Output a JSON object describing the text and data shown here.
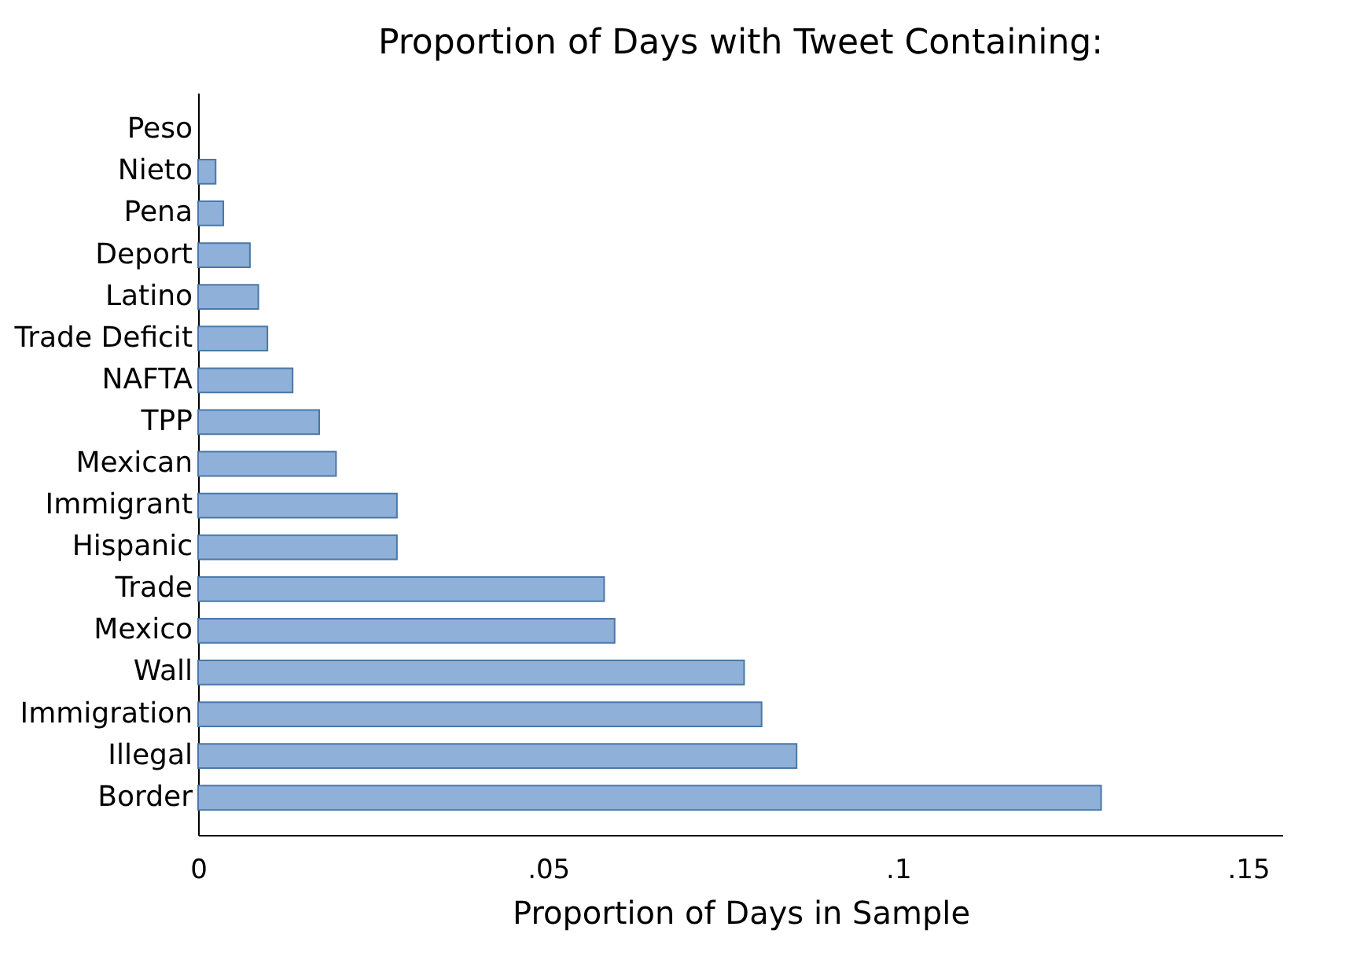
{
  "chart_data": {
    "type": "bar",
    "orientation": "horizontal",
    "title": "Proportion of Days with Tweet Containing:",
    "xlabel": "Proportion of Days in Sample",
    "categories": [
      "Peso",
      "Nieto",
      "Pena",
      "Deport",
      "Latino",
      "Trade Deficit",
      "NAFTA",
      "TPP",
      "Mexican",
      "Immigrant",
      "Hispanic",
      "Trade",
      "Mexico",
      "Wall",
      "Immigration",
      "Illegal",
      "Border"
    ],
    "values": [
      0,
      0.0025,
      0.0036,
      0.0074,
      0.0086,
      0.0099,
      0.0135,
      0.0173,
      0.0197,
      0.0284,
      0.0284,
      0.058,
      0.0595,
      0.078,
      0.0805,
      0.0855,
      0.129
    ],
    "color": "#8fb0d8",
    "xlim": [
      0,
      0.155
    ],
    "xticks": [
      0,
      {
        "value": 0.05,
        "label": ".05"
      },
      {
        "value": 0.1,
        "label": ".1"
      },
      {
        "value": 0.15,
        "label": ".15"
      }
    ],
    "grid": false
  }
}
